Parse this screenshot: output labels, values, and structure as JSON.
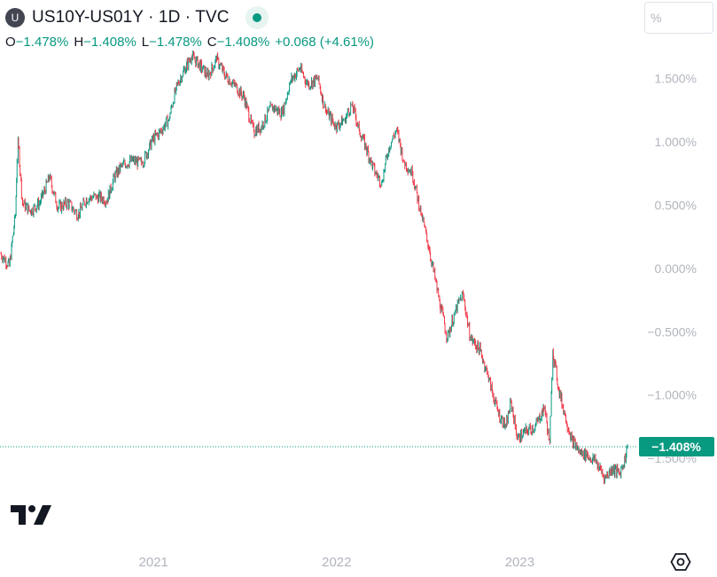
{
  "header": {
    "symbol_initial": "U",
    "title": "US10Y-US01Y · 1D · TVC",
    "status_icon": "market-status-dot"
  },
  "ohlc": {
    "o_label": "O",
    "o_value": "−1.478%",
    "h_label": "H",
    "h_value": "−1.408%",
    "l_label": "L",
    "l_value": "−1.478%",
    "c_label": "C",
    "c_value": "−1.408%",
    "change": "+0.068 (+4.61%)"
  },
  "scale_button": {
    "label": "%"
  },
  "last_price_label": "−1.408%",
  "colors": {
    "up": "#089981",
    "down": "#f23645",
    "axis_text": "#b2b5be",
    "price_line": "#089981"
  },
  "chart_data": {
    "type": "candlestick-line",
    "title": "US10Y-US01Y · 1D · TVC",
    "xlabel": "",
    "ylabel": "",
    "y_unit": "%",
    "ylim": [
      -1.8,
      1.7
    ],
    "y_ticks": [
      {
        "value": 1.5,
        "label": "1.500%"
      },
      {
        "value": 1.0,
        "label": "1.000%"
      },
      {
        "value": 0.5,
        "label": "0.500%"
      },
      {
        "value": 0.0,
        "label": "0.000%"
      },
      {
        "value": -0.5,
        "label": "−0.500%"
      },
      {
        "value": -1.0,
        "label": "−1.000%"
      },
      {
        "value": -1.5,
        "label": "−1.500%"
      }
    ],
    "x_ticks": [
      {
        "value": "2021-01-01",
        "label": "2021"
      },
      {
        "value": "2022-01-01",
        "label": "2022"
      },
      {
        "value": "2023-01-01",
        "label": "2023"
      }
    ],
    "xlim": [
      "2020-03-01",
      "2023-08-25"
    ],
    "last_value": -1.408,
    "series": [
      {
        "points": [
          [
            "2020-03-02",
            0.12
          ],
          [
            "2020-03-20",
            0.02
          ],
          [
            "2020-04-01",
            0.42
          ],
          [
            "2020-04-06",
            1.02
          ],
          [
            "2020-04-15",
            0.52
          ],
          [
            "2020-05-01",
            0.45
          ],
          [
            "2020-05-20",
            0.52
          ],
          [
            "2020-06-08",
            0.72
          ],
          [
            "2020-06-25",
            0.48
          ],
          [
            "2020-07-15",
            0.52
          ],
          [
            "2020-08-04",
            0.42
          ],
          [
            "2020-08-20",
            0.55
          ],
          [
            "2020-09-10",
            0.57
          ],
          [
            "2020-10-01",
            0.54
          ],
          [
            "2020-10-15",
            0.72
          ],
          [
            "2020-11-01",
            0.82
          ],
          [
            "2020-11-20",
            0.85
          ],
          [
            "2020-12-10",
            0.83
          ],
          [
            "2020-12-31",
            1.02
          ],
          [
            "2021-01-15",
            1.08
          ],
          [
            "2021-02-01",
            1.18
          ],
          [
            "2021-02-15",
            1.42
          ],
          [
            "2021-03-01",
            1.55
          ],
          [
            "2021-03-18",
            1.67
          ],
          [
            "2021-04-01",
            1.62
          ],
          [
            "2021-04-20",
            1.52
          ],
          [
            "2021-05-07",
            1.65
          ],
          [
            "2021-05-25",
            1.52
          ],
          [
            "2021-06-10",
            1.46
          ],
          [
            "2021-07-01",
            1.35
          ],
          [
            "2021-07-20",
            1.08
          ],
          [
            "2021-08-04",
            1.12
          ],
          [
            "2021-08-25",
            1.28
          ],
          [
            "2021-09-15",
            1.22
          ],
          [
            "2021-10-01",
            1.48
          ],
          [
            "2021-10-20",
            1.58
          ],
          [
            "2021-11-05",
            1.45
          ],
          [
            "2021-11-25",
            1.5
          ],
          [
            "2021-12-10",
            1.25
          ],
          [
            "2021-12-31",
            1.12
          ],
          [
            "2022-01-18",
            1.18
          ],
          [
            "2022-02-01",
            1.3
          ],
          [
            "2022-02-15",
            1.1
          ],
          [
            "2022-03-01",
            0.95
          ],
          [
            "2022-03-20",
            0.75
          ],
          [
            "2022-04-01",
            0.68
          ],
          [
            "2022-04-15",
            0.95
          ],
          [
            "2022-05-01",
            1.1
          ],
          [
            "2022-05-15",
            0.85
          ],
          [
            "2022-06-01",
            0.75
          ],
          [
            "2022-06-20",
            0.42
          ],
          [
            "2022-07-05",
            0.15
          ],
          [
            "2022-07-25",
            -0.25
          ],
          [
            "2022-08-10",
            -0.55
          ],
          [
            "2022-08-25",
            -0.35
          ],
          [
            "2022-09-10",
            -0.2
          ],
          [
            "2022-09-25",
            -0.55
          ],
          [
            "2022-10-15",
            -0.65
          ],
          [
            "2022-10-30",
            -0.85
          ],
          [
            "2022-11-20",
            -1.15
          ],
          [
            "2022-12-05",
            -1.25
          ],
          [
            "2022-12-15",
            -1.05
          ],
          [
            "2022-12-28",
            -1.35
          ],
          [
            "2023-01-15",
            -1.28
          ],
          [
            "2023-02-01",
            -1.25
          ],
          [
            "2023-02-20",
            -1.1
          ],
          [
            "2023-03-02",
            -1.38
          ],
          [
            "2023-03-08",
            -0.65
          ],
          [
            "2023-03-20",
            -0.95
          ],
          [
            "2023-04-01",
            -1.15
          ],
          [
            "2023-04-15",
            -1.35
          ],
          [
            "2023-05-01",
            -1.45
          ],
          [
            "2023-05-15",
            -1.48
          ],
          [
            "2023-06-01",
            -1.52
          ],
          [
            "2023-06-20",
            -1.65
          ],
          [
            "2023-07-05",
            -1.58
          ],
          [
            "2023-07-20",
            -1.62
          ],
          [
            "2023-08-01",
            -1.478
          ],
          [
            "2023-08-04",
            -1.408
          ]
        ]
      }
    ]
  }
}
